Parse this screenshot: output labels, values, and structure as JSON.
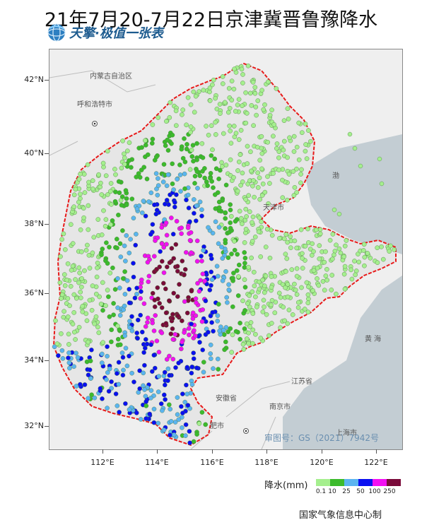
{
  "title": "21年7月20-7月22日京津冀晋鲁豫降水",
  "brand": {
    "text": "天擎·极值一张表",
    "icon": "globe-logo"
  },
  "axes": {
    "lat_labels": [
      "42°N",
      "40°N",
      "38°N",
      "36°N",
      "34°N",
      "32°N"
    ],
    "lon_labels": [
      "112°E",
      "114°E",
      "116°E",
      "118°E",
      "120°E",
      "122°E"
    ]
  },
  "places": {
    "neimenggu": "内蒙古自治区",
    "huhehaote": "呼和浩特市",
    "tianjin": "天津市",
    "bohai": "渤",
    "huanghai": "黄 海",
    "jiangsu": "江苏省",
    "anhui": "安徽省",
    "nanjing": "南京市",
    "hefei": "肥市",
    "shanghai": "上海市"
  },
  "map_review_no": "审图号：GS（2021）7942号",
  "legend": {
    "title": "降水(mm)",
    "labels": [
      "0.1",
      "10",
      "25",
      "50",
      "100",
      "250"
    ],
    "colors": [
      "#a5ef8e",
      "#3cbb2c",
      "#5bb4f0",
      "#0a0ff0",
      "#f20ff2",
      "#7a0a3a"
    ]
  },
  "agency": "国家气象信息中心制",
  "colors": {
    "border_red": "#e81a1a",
    "sea": "#c3cdd3",
    "land": "#efefef",
    "region_fill": "#e4e4e4"
  }
}
